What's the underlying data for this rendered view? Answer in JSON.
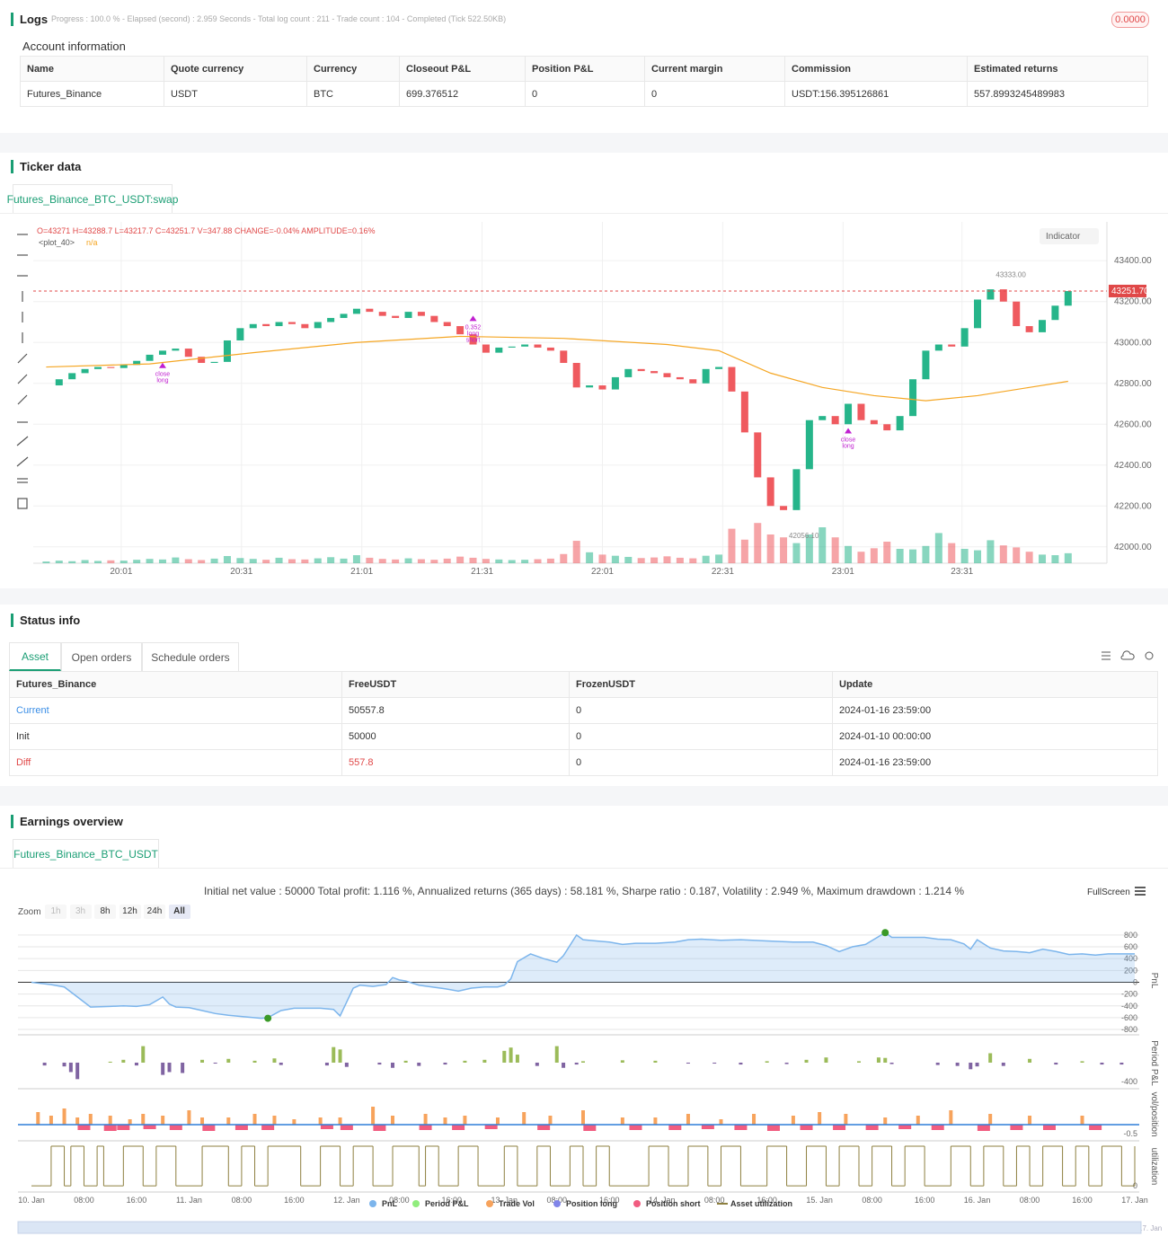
{
  "logs": {
    "title": "Logs",
    "summary": "Progress : 100.0 % - Elapsed (second) : 2.959 Seconds - Total log count : 211 - Trade count : 104 - Completed (Tick 522.50KB)",
    "badge": "0.0000"
  },
  "account": {
    "title": "Account information",
    "columns": [
      "Name",
      "Quote currency",
      "Currency",
      "Closeout P&L",
      "Position P&L",
      "Current margin",
      "Commission",
      "Estimated returns"
    ],
    "rows": [
      [
        "Futures_Binance",
        "USDT",
        "BTC",
        "699.376512",
        "0",
        "0",
        "USDT:156.395126861",
        "557.8993245489983"
      ]
    ]
  },
  "ticker": {
    "title": "Ticker data",
    "tab": "Futures_Binance_BTC_USDT:swap",
    "indicator": "Indicator"
  },
  "status": {
    "title": "Status info",
    "tabs": [
      "Asset",
      "Open orders",
      "Schedule orders"
    ],
    "columns": [
      "Futures_Binance",
      "FreeUSDT",
      "FrozenUSDT",
      "Update"
    ],
    "rows": [
      [
        "Current",
        "50557.8",
        "0",
        "2024-01-16 23:59:00"
      ],
      [
        "Init",
        "50000",
        "0",
        "2024-01-10 00:00:00"
      ],
      [
        "Diff",
        "557.8",
        "0",
        "2024-01-16 23:59:00"
      ]
    ]
  },
  "earnings": {
    "title": "Earnings overview",
    "tab": "Futures_Binance_BTC_USDT",
    "summary": "Initial net value : 50000 Total profit: 1.116 %, Annualized returns (365 days) : 58.181 %, Sharpe ratio : 0.187, Volatility : 2.949 %, Maximum drawdown : 1.214 %",
    "zoom_label": "Zoom",
    "zoom_options": [
      "1h",
      "3h",
      "8h",
      "12h",
      "24h",
      "All"
    ],
    "fullscreen": "FullScreen",
    "legend": [
      {
        "name": "PnL",
        "color": "#7cb5ec"
      },
      {
        "name": "Period P&L",
        "color": "#90ed7d"
      },
      {
        "name": "Trade Vol",
        "color": "#f7a35c"
      },
      {
        "name": "Position long",
        "color": "#8085e9"
      },
      {
        "name": "Position short",
        "color": "#f15c80"
      },
      {
        "name": "Asset utilization",
        "color": "#8d7f3f"
      }
    ]
  },
  "chart_data": [
    {
      "type": "candlestick",
      "ohlc_text": "O=43271 H=43288.7 L=43217.7 C=43251.7 V=347.88 CHANGE=-0.04% AMPLITUDE=0.16%",
      "up_color": "#26b58a",
      "down_color": "#ef5a5f",
      "closes": [
        42790,
        42820,
        42850,
        42870,
        42880,
        42875,
        42890,
        42910,
        42940,
        42960,
        42970,
        42930,
        42900,
        42905,
        43010,
        43070,
        43090,
        43080,
        43100,
        43090,
        43070,
        43100,
        43120,
        43140,
        43165,
        43150,
        43130,
        43120,
        43150,
        43130,
        43100,
        43080,
        43040,
        42990,
        42950,
        42975,
        42980,
        42990,
        42975,
        42960,
        42900,
        42780,
        42790,
        42770,
        42830,
        42870,
        42860,
        42850,
        42830,
        42820,
        42800,
        42870,
        42880,
        42760,
        42560,
        42340,
        42200,
        42180,
        42380,
        42620,
        42640,
        42600,
        42700,
        42620,
        42600,
        42570,
        42640,
        42820,
        42960,
        42990,
        42980,
        43070,
        43210,
        43260,
        43200,
        43080,
        43050,
        43110,
        43180,
        43251.7
      ],
      "volumes": [
        60,
        90,
        70,
        110,
        80,
        100,
        90,
        120,
        150,
        130,
        200,
        140,
        110,
        160,
        250,
        180,
        150,
        120,
        190,
        140,
        130,
        170,
        210,
        160,
        280,
        190,
        150,
        130,
        170,
        140,
        120,
        160,
        230,
        190,
        150,
        130,
        110,
        120,
        140,
        160,
        320,
        780,
        380,
        300,
        260,
        220,
        180,
        200,
        240,
        190,
        170,
        260,
        300,
        1200,
        820,
        1400,
        1000,
        900,
        700,
        1000,
        1250,
        900,
        600,
        400,
        520,
        750,
        500,
        480,
        600,
        1050,
        700,
        500,
        450,
        800,
        620,
        550,
        400,
        300,
        280,
        347.88
      ],
      "ma": {
        "name": "<plot_40>",
        "value_text": "n/a",
        "color": "#f5a623",
        "x": [
          0,
          8,
          16,
          24,
          32,
          40,
          48,
          52,
          56,
          60,
          64,
          68,
          72,
          76,
          79
        ],
        "values": [
          42880,
          42895,
          42950,
          43000,
          43030,
          43020,
          42990,
          42960,
          42850,
          42780,
          42740,
          42715,
          42740,
          42780,
          42810
        ]
      },
      "xlim": [
        -1,
        82
      ],
      "ylim": [
        41920,
        43590
      ],
      "xticks": [
        {
          "value": 5.8,
          "label": "20:01"
        },
        {
          "value": 15.1,
          "label": "20:31"
        },
        {
          "value": 24.4,
          "label": "21:01"
        },
        {
          "value": 33.7,
          "label": "21:31"
        },
        {
          "value": 43,
          "label": "22:01"
        },
        {
          "value": 52.3,
          "label": "22:31"
        },
        {
          "value": 61.6,
          "label": "23:01"
        },
        {
          "value": 70.8,
          "label": "23:31"
        }
      ],
      "yticks": [
        {
          "value": 42000,
          "label": "42000.00"
        },
        {
          "value": 42200,
          "label": "42200.00"
        },
        {
          "value": 42400,
          "label": "42400.00"
        },
        {
          "value": 42600,
          "label": "42600.00"
        },
        {
          "value": 42800,
          "label": "42800.00"
        },
        {
          "value": 43000,
          "label": "43000.00"
        },
        {
          "value": 43200,
          "label": "43200.00"
        },
        {
          "value": 43400,
          "label": "43400.00"
        }
      ],
      "last_price": {
        "value": 43251.7,
        "label": "43251.70"
      },
      "annotations": [
        {
          "x": 73,
          "y": 43333,
          "label": "43333.00"
        },
        {
          "x": 57,
          "y": 42056.1,
          "label": "42056.10"
        }
      ],
      "trades": [
        {
          "x": 9,
          "y": 42910,
          "lines": [
            "close",
            "long"
          ]
        },
        {
          "x": 33,
          "y": 43140,
          "lines": [
            "0.352",
            "long",
            "short"
          ]
        },
        {
          "x": 62,
          "y": 42590,
          "lines": [
            "close",
            "long"
          ]
        }
      ],
      "grid": true
    },
    {
      "type": "area",
      "axis_title": "PnL",
      "xlim": [
        0,
        168
      ],
      "ylim": [
        -860,
        920
      ],
      "x": [
        0,
        3,
        5,
        7,
        9,
        12,
        14,
        16,
        18,
        20,
        21,
        22,
        24,
        26,
        28,
        30,
        32,
        35,
        36,
        38,
        40,
        44,
        46,
        47,
        49,
        50,
        52,
        54,
        55,
        56,
        57,
        59,
        61,
        63,
        65,
        67,
        69,
        71,
        72,
        73,
        74,
        76,
        78,
        80,
        81,
        83,
        84,
        86,
        88,
        90,
        92,
        95,
        98,
        100,
        102,
        105,
        108,
        112,
        116,
        119,
        121,
        123,
        125,
        127,
        130,
        131,
        134,
        136,
        138,
        140,
        142,
        143,
        144,
        146,
        148,
        150,
        152,
        154,
        156,
        158,
        160,
        162,
        164,
        166,
        168
      ],
      "values": [
        0,
        -40,
        -80,
        -250,
        -420,
        -410,
        -400,
        -410,
        -380,
        -250,
        -370,
        -420,
        -430,
        -480,
        -530,
        -560,
        -580,
        -610,
        -600,
        -480,
        -440,
        -440,
        -460,
        -570,
        -100,
        -50,
        -70,
        -40,
        80,
        40,
        20,
        -50,
        -80,
        -110,
        -150,
        -100,
        -80,
        -80,
        -50,
        60,
        350,
        480,
        400,
        340,
        450,
        800,
        720,
        700,
        680,
        640,
        660,
        660,
        680,
        720,
        730,
        710,
        720,
        700,
        680,
        680,
        620,
        520,
        600,
        640,
        840,
        760,
        760,
        760,
        730,
        720,
        650,
        560,
        720,
        580,
        530,
        520,
        500,
        560,
        520,
        470,
        480,
        460,
        480,
        480,
        480
      ],
      "extremes": [
        {
          "x": 130,
          "y": 840
        },
        {
          "x": 36,
          "y": -610
        }
      ],
      "extreme_color": "#3a9a28",
      "xticks": [
        {
          "value": 0,
          "label": "10. Jan"
        },
        {
          "value": 8,
          "label": "08:00"
        },
        {
          "value": 16,
          "label": "16:00"
        },
        {
          "value": 24,
          "label": "11. Jan"
        },
        {
          "value": 32,
          "label": "08:00"
        },
        {
          "value": 40,
          "label": "16:00"
        },
        {
          "value": 48,
          "label": "12. Jan"
        },
        {
          "value": 56,
          "label": "08:00"
        },
        {
          "value": 64,
          "label": "16:00"
        },
        {
          "value": 72,
          "label": "13. Jan"
        },
        {
          "value": 80,
          "label": "08:00"
        },
        {
          "value": 88,
          "label": "16:00"
        },
        {
          "value": 96,
          "label": "14. Jan"
        },
        {
          "value": 104,
          "label": "08:00"
        },
        {
          "value": 112,
          "label": "16:00"
        },
        {
          "value": 120,
          "label": "15. Jan"
        },
        {
          "value": 128,
          "label": "08:00"
        },
        {
          "value": 136,
          "label": "16:00"
        },
        {
          "value": 144,
          "label": "16. Jan"
        },
        {
          "value": 152,
          "label": "08:00"
        },
        {
          "value": 160,
          "label": "16:00"
        },
        {
          "value": 168,
          "label": "17. Jan"
        }
      ],
      "yticks": [
        800,
        600,
        400,
        200,
        0,
        -200,
        -400,
        -600,
        -800
      ]
    },
    {
      "type": "bar",
      "axis_title": "Period P&L",
      "pos_color": "#9bbb59",
      "neg_color": "#8064a2",
      "ylim": [
        -515,
        495
      ],
      "yticks": [
        -400
      ],
      "x": [
        2,
        5,
        6,
        7,
        12,
        14,
        16,
        17,
        20,
        21,
        23,
        26,
        28,
        30,
        34,
        37,
        38,
        45,
        46,
        47,
        48,
        53,
        55,
        57,
        59,
        63,
        66,
        69,
        72,
        73,
        74,
        77,
        80,
        81,
        83,
        84,
        90,
        95,
        100,
        104,
        108,
        112,
        115,
        118,
        121,
        126,
        129,
        130,
        131,
        138,
        141,
        143,
        144,
        146,
        148,
        152,
        156,
        160,
        163,
        166
      ],
      "values": [
        -60,
        -80,
        -200,
        -350,
        20,
        60,
        -60,
        350,
        -260,
        -200,
        -220,
        60,
        -20,
        80,
        40,
        90,
        -50,
        -60,
        330,
        280,
        -90,
        -40,
        -110,
        40,
        -70,
        -40,
        40,
        60,
        250,
        320,
        170,
        -70,
        350,
        -110,
        -40,
        30,
        50,
        40,
        -20,
        -20,
        -40,
        30,
        -30,
        60,
        110,
        30,
        110,
        100,
        -30,
        -50,
        -70,
        -140,
        -80,
        200,
        -70,
        80,
        -40,
        30,
        -40,
        -40
      ]
    },
    {
      "type": "stackbar",
      "axis_title": "vol/position",
      "ylim": [
        -0.8,
        1.95
      ],
      "yticks": [
        -0.5
      ],
      "series": [
        {
          "x": [
            1,
            3,
            5,
            7,
            9,
            12,
            15,
            17,
            20,
            24,
            26,
            30,
            34,
            37,
            40,
            44,
            47,
            52,
            55,
            60,
            63,
            66,
            71,
            75,
            79,
            84,
            90,
            95,
            100,
            105,
            110,
            116,
            120,
            124,
            130,
            135,
            140,
            146,
            152,
            160
          ],
          "values": [
            0.7,
            0.5,
            0.9,
            0.4,
            0.6,
            0.5,
            0.3,
            0.6,
            0.5,
            0.8,
            0.4,
            0.4,
            0.6,
            0.5,
            0.3,
            0.4,
            0.4,
            1.0,
            0.5,
            0.6,
            0.4,
            0.5,
            0.4,
            0.7,
            0.5,
            0.8,
            0.4,
            0.4,
            0.6,
            0.3,
            0.6,
            0.5,
            0.7,
            0.6,
            0.4,
            0.5,
            0.8,
            0.6,
            0.5,
            0.5
          ]
        },
        {
          "x": [
            8,
            12,
            14,
            18,
            22,
            27,
            32,
            36,
            45,
            48,
            53,
            60,
            65,
            70,
            78,
            85,
            92,
            98,
            103,
            108,
            113,
            118,
            123,
            128,
            133,
            138,
            145,
            150,
            155,
            162
          ],
          "values": [
            -0.3,
            -0.35,
            -0.3,
            -0.25,
            -0.3,
            -0.35,
            -0.3,
            -0.3,
            -0.25,
            -0.3,
            -0.35,
            -0.3,
            -0.3,
            -0.25,
            -0.3,
            -0.35,
            -0.3,
            -0.3,
            -0.25,
            -0.3,
            -0.35,
            -0.3,
            -0.3,
            -0.3,
            -0.25,
            -0.3,
            -0.35,
            -0.3,
            -0.3,
            -0.3
          ]
        }
      ]
    },
    {
      "type": "step",
      "axis_title": "utilization",
      "ylim": [
        -0.11,
        1.09
      ],
      "yticks": [
        0
      ],
      "x": [
        0,
        3,
        5,
        6,
        8,
        10,
        11,
        14,
        17,
        19,
        22,
        26,
        30,
        32,
        34,
        36,
        41,
        44,
        47,
        49,
        52,
        55,
        59,
        60,
        62,
        65,
        68,
        72,
        74,
        77,
        79,
        82,
        84,
        86,
        88,
        94,
        97,
        100,
        103,
        105,
        108,
        112,
        115,
        118,
        121,
        123,
        126,
        128,
        131,
        133,
        136,
        140,
        143,
        145,
        148,
        150,
        152,
        154,
        157,
        159,
        161,
        163,
        166,
        168
      ],
      "values": [
        0,
        1,
        0,
        1,
        0,
        1,
        0,
        1,
        0,
        1,
        0,
        1,
        0,
        1,
        0,
        1,
        0,
        1,
        0,
        1,
        0,
        1,
        0,
        1,
        0,
        1,
        0,
        1,
        0,
        1,
        0,
        1,
        0,
        1,
        0,
        1,
        0,
        1,
        0,
        1,
        0,
        1,
        0,
        1,
        0,
        1,
        0,
        1,
        0,
        1,
        0,
        1,
        0,
        1,
        0,
        1,
        0,
        1,
        0,
        1,
        0,
        1,
        0,
        1
      ]
    }
  ]
}
